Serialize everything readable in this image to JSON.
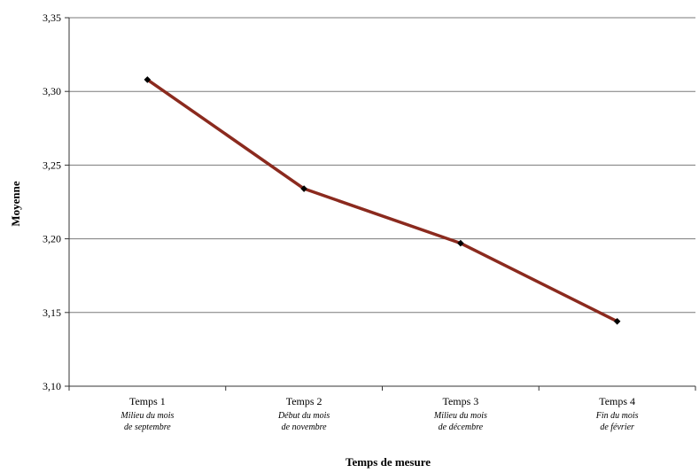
{
  "chart_data": {
    "type": "line",
    "xlabel": "Temps de mesure",
    "ylabel": "Moyenne",
    "ylim": [
      3.1,
      3.35
    ],
    "yticks": [
      "3,10",
      "3,15",
      "3,20",
      "3,25",
      "3,30",
      "3,35"
    ],
    "grid": "horizontal",
    "categories": [
      {
        "label": "Temps 1",
        "sub": [
          "Milieu du mois",
          "de septembre"
        ]
      },
      {
        "label": "Temps 2",
        "sub": [
          "Début du mois",
          "de novembre"
        ]
      },
      {
        "label": "Temps 3",
        "sub": [
          "Milieu du mois",
          "de décembre"
        ]
      },
      {
        "label": "Temps 4",
        "sub": [
          "Fin du mois",
          "de février"
        ]
      }
    ],
    "series": [
      {
        "values": [
          3.308,
          3.234,
          3.197,
          3.144
        ],
        "color": "#8b2a1e",
        "marker_color": "#000000"
      }
    ]
  }
}
